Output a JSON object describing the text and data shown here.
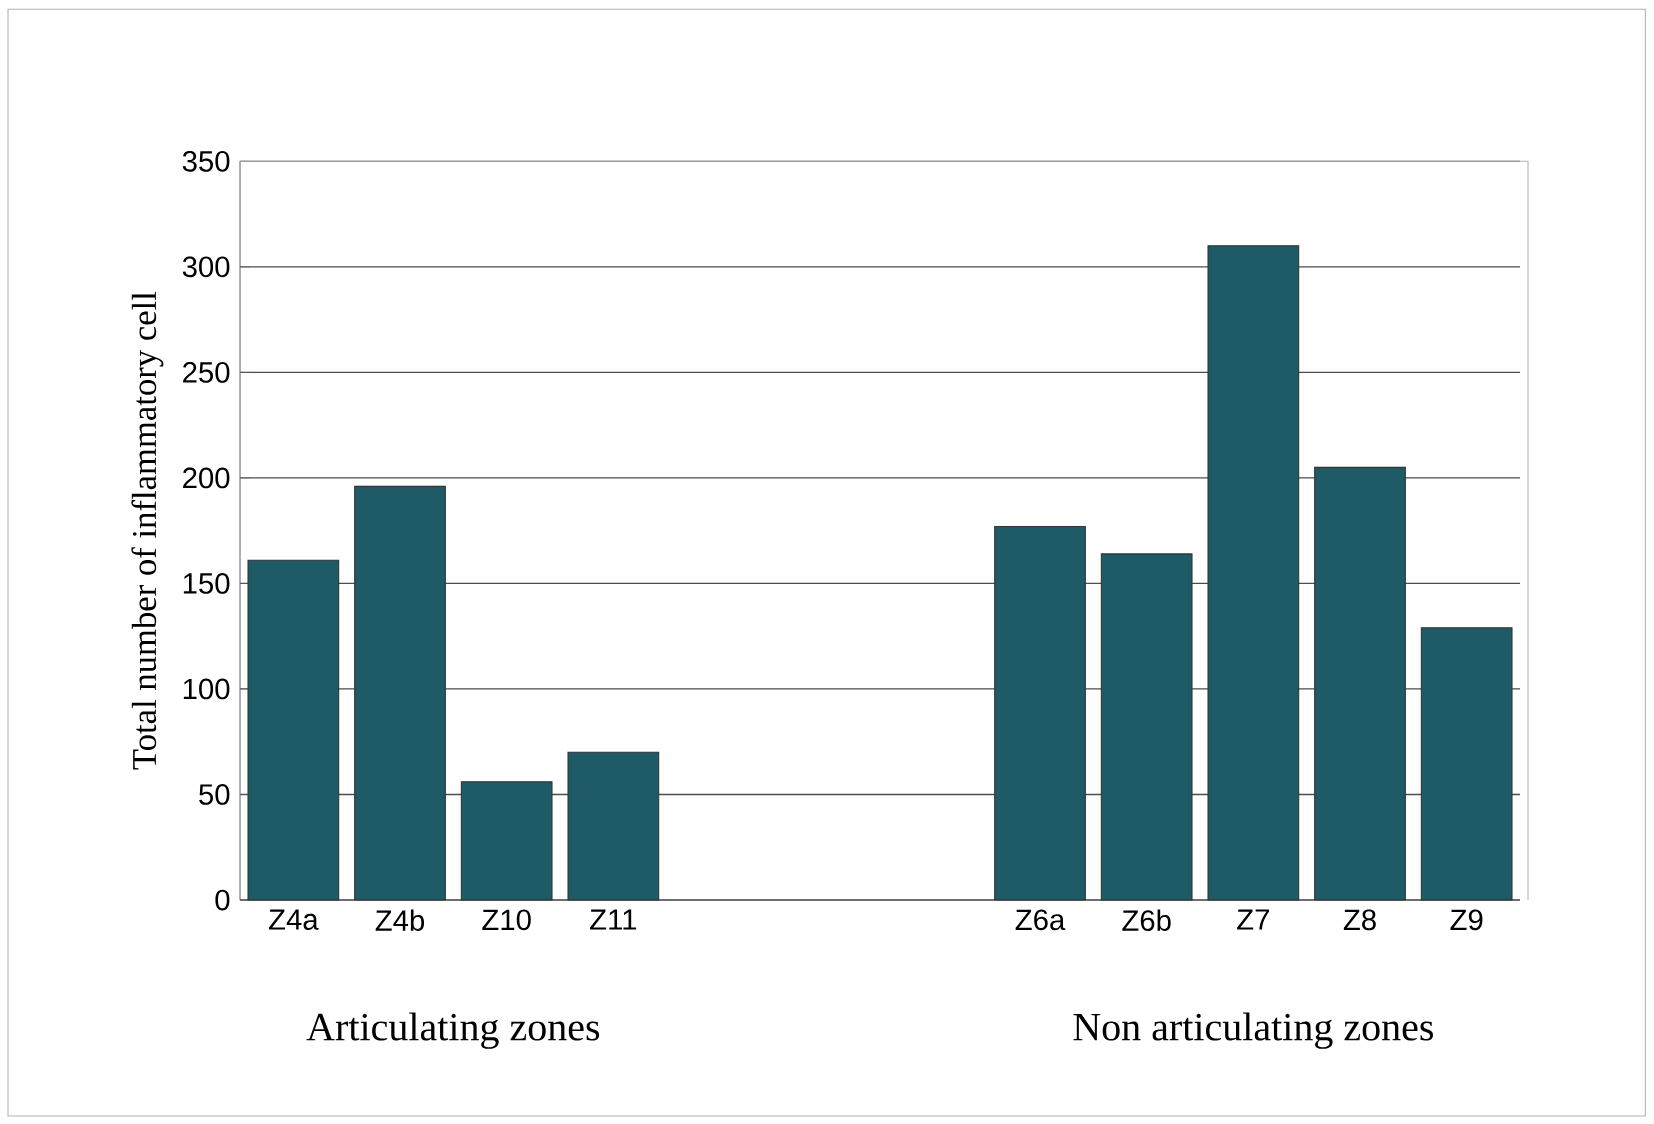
{
  "chart_data": {
    "type": "bar",
    "ylabel": "Total number of inflammatory cell",
    "categories": [
      "Z4a",
      "Z4b",
      "Z10",
      "Z11",
      null,
      null,
      null,
      "Z6a",
      "Z6b",
      "Z7",
      "Z8",
      "Z9"
    ],
    "values": [
      161,
      196,
      56,
      70,
      null,
      null,
      null,
      177,
      164,
      310,
      205,
      129
    ],
    "color": "#1f5b66",
    "ylim": [
      0,
      350
    ],
    "yticks": [
      0,
      50,
      100,
      150,
      200,
      250,
      300,
      350
    ],
    "grid": "y",
    "annotations": [
      "Articulating zones",
      "Non articulating zones"
    ]
  }
}
